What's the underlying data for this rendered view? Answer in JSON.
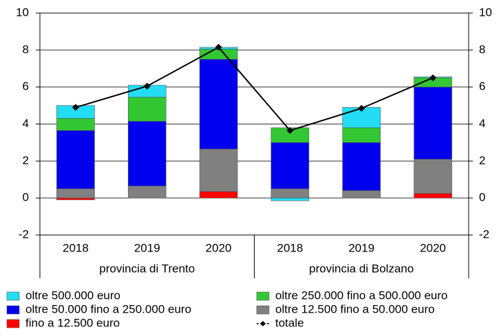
{
  "chart_data": {
    "type": "bar",
    "stacked": true,
    "categories": [
      "2018",
      "2019",
      "2020",
      "2018",
      "2019",
      "2020"
    ],
    "groups": [
      {
        "name": "provincia di Trento",
        "categories": [
          "2018",
          "2019",
          "2020"
        ]
      },
      {
        "name": "provincia di Bolzano",
        "categories": [
          "2018",
          "2019",
          "2020"
        ]
      }
    ],
    "series": [
      {
        "name": "fino a 12.500 euro",
        "color": "#ff0000",
        "values": [
          -0.1,
          0,
          0.35,
          0,
          0,
          0.25
        ]
      },
      {
        "name": "oltre 12.500 fino a 50.000 euro",
        "color": "#808080",
        "values": [
          0.5,
          0.65,
          2.3,
          0.5,
          0.4,
          1.85
        ]
      },
      {
        "name": "oltre 50.000 fino a 250.000 euro",
        "color": "#0000ee",
        "values": [
          3.15,
          3.5,
          4.85,
          2.5,
          2.6,
          3.9
        ]
      },
      {
        "name": "oltre 250.000 fino a 500.000 euro",
        "color": "#33c733",
        "values": [
          0.65,
          1.3,
          0.55,
          0.8,
          0.8,
          0.5
        ]
      },
      {
        "name": "oltre 500.000 euro",
        "color": "#22ddf5",
        "values": [
          0.7,
          0.65,
          0.1,
          -0.15,
          1.1,
          0.05
        ]
      },
      {
        "name": "totale",
        "color": "#000000",
        "type": "line",
        "values": [
          4.9,
          6.05,
          8.15,
          3.65,
          4.85,
          6.5
        ]
      }
    ],
    "ylim": [
      -2,
      10
    ],
    "yticks": [
      -2,
      0,
      2,
      4,
      6,
      8,
      10
    ],
    "y2lim": [
      -2,
      10
    ],
    "y2ticks": [
      -2,
      0,
      2,
      4,
      6,
      8,
      10
    ],
    "grid": true,
    "legend": "bottom"
  }
}
